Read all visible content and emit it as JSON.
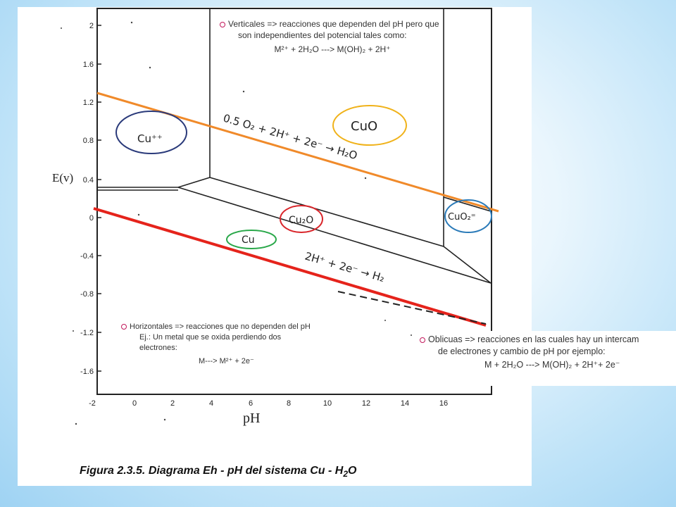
{
  "caption": {
    "prefix": "Figura 2.3.5. Diagrama Eh - pH del sistema Cu - H",
    "sub": "2",
    "suffix": "O"
  },
  "axes": {
    "ylabel": "E(v)",
    "xlabel": "pH",
    "y_ticks": [
      "2",
      "1.6",
      "1.2",
      "0.8",
      "0.4",
      "0",
      "-0.4",
      "-0.8",
      "-1.2",
      "-1.6"
    ],
    "x_ticks": [
      "-2",
      "0",
      "2",
      "4",
      "6",
      "8",
      "10",
      "12",
      "14",
      "16"
    ]
  },
  "regions": {
    "cu_pp": "Cu⁺⁺",
    "cuo": "CuO",
    "cu2o": "Cu₂O",
    "cu": "Cu",
    "cuo2": "CuO₂⁼"
  },
  "reactions": {
    "oxygen": "0.5 O₂ + 2H⁺ + 2e⁻ → H₂O",
    "hydrogen": "2H⁺ + 2e⁻ → H₂"
  },
  "notes": {
    "vertical": {
      "line1": "Verticales => reacciones que dependen del pH pero que",
      "line2": "son independientes del potencial tales como:",
      "eq": "M²⁺ + 2H₂O ---> M(OH)₂ + 2H⁺"
    },
    "horizontal": {
      "line1": "Horizontales => reacciones que no dependen del pH",
      "line2": "Ej.: Un metal que se oxida perdiendo dos",
      "line3": "electrones:",
      "eq": "M---> M²⁺ + 2e⁻"
    },
    "oblique": {
      "line1": "Oblicuas => reacciones en las cuales hay un intercam",
      "line2": "de electrones y cambio de pH por ejemplo:",
      "eq": "M + 2H₂O ---> M(OH)₂ + 2H⁺+ 2e⁻"
    }
  },
  "colors": {
    "oxygen_line": "#f08a2a",
    "hydrogen_line": "#e5231b",
    "cu_pp_circle": "#2a3a7a",
    "cuo_circle": "#f0b21a",
    "cu2o_circle": "#d9252a",
    "cu_circle": "#2aa84a",
    "cuo2_circle": "#2a7ab8"
  }
}
